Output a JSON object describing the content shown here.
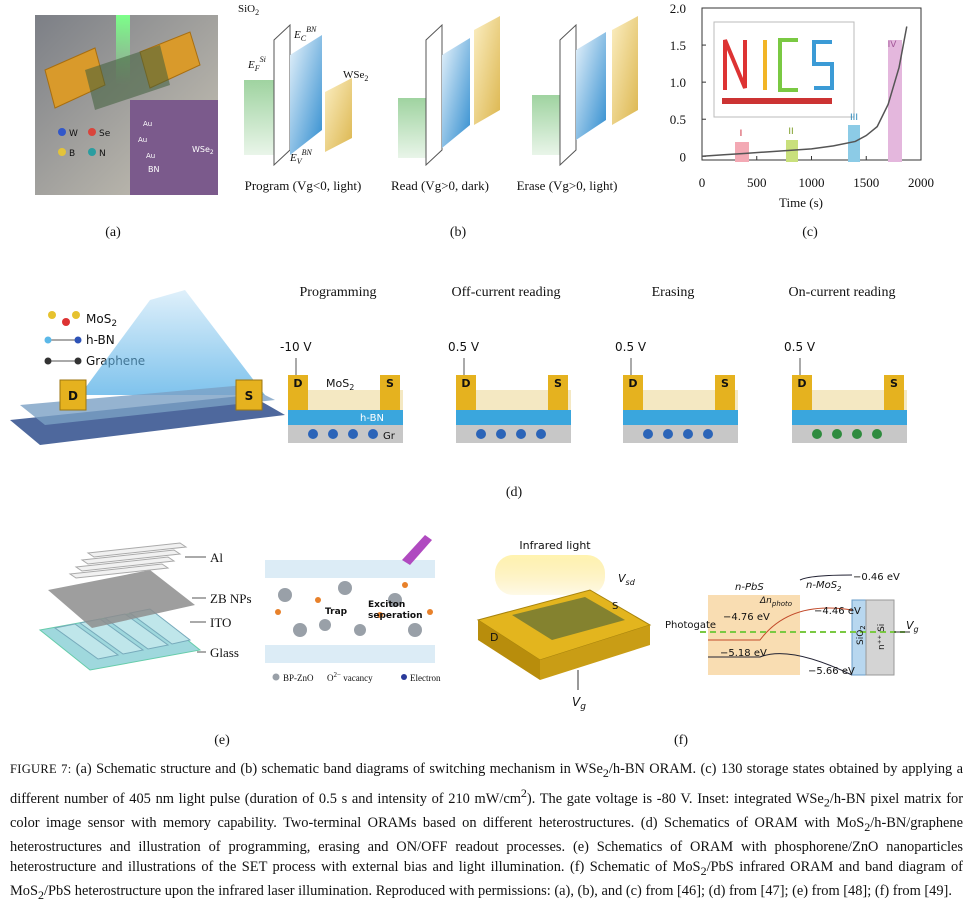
{
  "panel_a": {
    "label": "(a)",
    "legend": [
      "W",
      "Se",
      "B",
      "N"
    ],
    "inset_au": "Au",
    "inset_wse2": {
      "base": "WSe",
      "sub": "2"
    },
    "inset_bn": "BN"
  },
  "panel_b": {
    "label": "(b)",
    "sio2": {
      "base": "SiO",
      "sub": "2"
    },
    "ef": {
      "base": "E",
      "sub": "F",
      "sup": "Si"
    },
    "ec": {
      "base": "E",
      "sub": "C",
      "sup": "BN"
    },
    "ev": {
      "base": "E",
      "sub": "V",
      "sup": "BN"
    },
    "wse2": {
      "base": "WSe",
      "sub": "2"
    },
    "captions": [
      "Program (Vg<0, light)",
      "Read (Vg>0, dark)",
      "Erase (Vg>0, light)"
    ]
  },
  "panel_c": {
    "label": "(c)",
    "xlabel": "Time (s)",
    "xlim": [
      0,
      2000
    ],
    "ylim": [
      -0.05,
      2.0
    ],
    "xticks": [
      0,
      500,
      1000,
      1500,
      2000
    ],
    "yticks": [
      0,
      0.5,
      {
        "value": 1,
        "label": "1.0"
      },
      1.5,
      {
        "value": 2,
        "label": "2.0"
      }
    ],
    "regions": [
      "I",
      "II",
      "III",
      "IV"
    ],
    "x": [
      0,
      200,
      400,
      600,
      800,
      1000,
      1200,
      1400,
      1500,
      1600,
      1700,
      1800,
      1870
    ],
    "values": [
      0,
      0.02,
      0.04,
      0.06,
      0.08,
      0.1,
      0.14,
      0.2,
      0.28,
      0.4,
      0.7,
      1.2,
      1.75
    ]
  },
  "panel_d": {
    "label": "(d)",
    "legend_mos2": {
      "base": "MoS",
      "sub": "2"
    },
    "legend_hbn": "h-BN",
    "legend_graphene": "Graphene",
    "device": [
      "D",
      "S"
    ],
    "layer_mos2": {
      "base": "MoS",
      "sub": "2"
    },
    "layer_hbn": "h-BN",
    "layer_gr": "Gr",
    "stages": [
      {
        "title": "Programming",
        "voltage": "-10 V"
      },
      {
        "title": "Off-current reading",
        "voltage": "0.5 V"
      },
      {
        "title": "Erasing",
        "voltage": "0.5 V"
      },
      {
        "title": "On-current reading",
        "voltage": "0.5 V"
      }
    ]
  },
  "panel_e": {
    "label": "(e)",
    "layers": [
      "Al",
      "ZB NPs",
      "ITO",
      "Glass"
    ],
    "trap": "Trap",
    "exciton": [
      "Exciton",
      "seperation"
    ],
    "legend_bpzno": "BP-ZnO",
    "legend_vacancy": {
      "base": "O",
      "sup": "2−",
      "rest": " vacancy"
    },
    "legend_electron": "Electron"
  },
  "panel_f": {
    "label": "(f)",
    "ir_light": "Infrared light",
    "vsd": {
      "base": "V",
      "sub": "sd"
    },
    "s": "S",
    "d": "D",
    "vg": {
      "base": "V",
      "sub": "g"
    },
    "npbs": "n-PbS",
    "nmos2": {
      "base": "n-MoS",
      "sub": "2"
    },
    "e046": "−0.46 eV",
    "dn": {
      "base": "Δn",
      "sub": "photo"
    },
    "e446": "−4.46 eV",
    "e476": "−4.76 eV",
    "photogate": "Photogate",
    "e518": "−5.18 eV",
    "e566": "−5.66 eV",
    "sio2": {
      "base": "SiO",
      "sub": "2"
    },
    "si": "n⁺⁺ Si"
  },
  "caption": [
    {
      "text": "FIGURE 7: ",
      "style": "label"
    },
    {
      "text": "(a) Schematic structure and (b) schematic band diagrams of switching mechanism in WSe",
      "style": "normal"
    },
    {
      "text": "2",
      "style": "sub"
    },
    {
      "text": "/h-BN ORAM. (c) 130 storage states obtained by applying a different number of 405 nm light pulse (duration of 0.5 s and intensity of 210 mW/cm",
      "style": "normal"
    },
    {
      "text": "2",
      "style": "sup"
    },
    {
      "text": "). The gate voltage is -80 V. Inset: integrated WSe",
      "style": "normal"
    },
    {
      "text": "2",
      "style": "sub"
    },
    {
      "text": "/h-BN pixel matrix for color image sensor with memory capability. Two-terminal ORAMs based on different heterostructures. (d) Schematics of ORAM with MoS",
      "style": "normal"
    },
    {
      "text": "2",
      "style": "sub"
    },
    {
      "text": "/h-BN/graphene heterostructures and illustration of programming, erasing and ON/OFF readout processes. (e) Schematics of ORAM with phosphorene/ZnO nanoparticles heterostructure and illustrations of the SET process with external bias and light illumination. (f) Schematic of MoS",
      "style": "normal"
    },
    {
      "text": "2",
      "style": "sub"
    },
    {
      "text": "/PbS infrared ORAM and band diagram of MoS",
      "style": "normal"
    },
    {
      "text": "2",
      "style": "sub"
    },
    {
      "text": "/PbS heterostructure upon the infrared laser illumination. Reproduced with permissions: (a), (b), and (c) from [46]; (d) from [47]; (e) from [48]; (f) from [49].",
      "style": "normal"
    }
  ]
}
